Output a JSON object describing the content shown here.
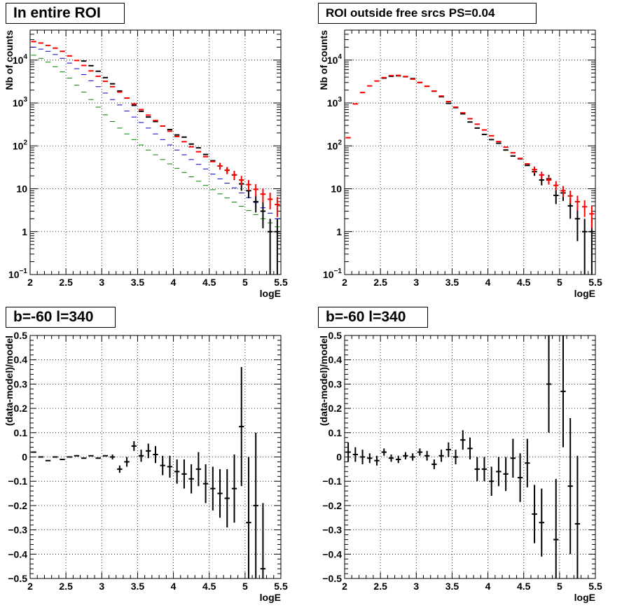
{
  "chart_data": [
    {
      "type": "scatter",
      "title": "In entire ROI",
      "xlabel": "logE",
      "ylabel": "Nb of counts",
      "xlim": [
        2,
        5.5
      ],
      "ylim": [
        0.1,
        50000
      ],
      "yscale": "log",
      "grid": true,
      "x_ticks": [
        "2",
        "2.5",
        "3",
        "3.5",
        "4",
        "4.5",
        "5",
        "5.5"
      ],
      "y_ticks": [
        "10^-1",
        "1",
        "10",
        "10^2",
        "10^3",
        "10^4"
      ],
      "series": [
        {
          "color": "#008000",
          "x": [
            2.05,
            2.15,
            2.25,
            2.35,
            2.45,
            2.55,
            2.65,
            2.75,
            2.85,
            2.95,
            3.05,
            3.15,
            3.25,
            3.35,
            3.45,
            3.55,
            3.65,
            3.75,
            3.85,
            3.95,
            4.05,
            4.15,
            4.25,
            4.35,
            4.45,
            4.55,
            4.65,
            4.75,
            4.85,
            4.95,
            5.05,
            5.15,
            5.25,
            5.35,
            5.45
          ],
          "y": [
            13000,
            11000,
            9000,
            7000,
            5300,
            3800,
            2600,
            1800,
            1200,
            800,
            530,
            370,
            260,
            190,
            140,
            105,
            80,
            62,
            48,
            38,
            30,
            24,
            19,
            15,
            12,
            9.5,
            7.6,
            6.1,
            4.9,
            3.9,
            3.1,
            2.5,
            2.0,
            1.6,
            1.3
          ]
        },
        {
          "color": "#0000cc",
          "x": [
            2.05,
            2.15,
            2.25,
            2.35,
            2.45,
            2.55,
            2.65,
            2.75,
            2.85,
            2.95,
            3.05,
            3.15,
            3.25,
            3.35,
            3.45,
            3.55,
            3.65,
            3.75,
            3.85,
            3.95,
            4.05,
            4.15,
            4.25,
            4.35,
            4.45,
            4.55,
            4.65,
            4.75,
            4.85,
            4.95,
            5.05,
            5.15,
            5.25,
            5.35,
            5.45
          ],
          "y": [
            20000,
            18000,
            16000,
            13500,
            11000,
            8500,
            6300,
            4600,
            3300,
            2400,
            1700,
            1200,
            900,
            650,
            470,
            350,
            260,
            190,
            140,
            105,
            80,
            62,
            48,
            37,
            29,
            22,
            17,
            13.5,
            10.5,
            8,
            6.2,
            4.8,
            3.6,
            2.7,
            2.0
          ]
        },
        {
          "color": "#000000",
          "x": [
            2.75,
            2.85,
            2.95,
            3.05,
            3.15,
            3.25,
            3.35,
            3.45,
            3.55,
            3.65,
            3.75,
            3.85,
            3.95,
            4.05,
            4.15,
            4.25,
            4.35,
            4.45,
            4.55,
            4.65,
            4.75,
            4.85,
            4.95,
            5.05,
            5.15,
            5.25,
            5.35,
            5.45
          ],
          "y": [
            9500,
            7400,
            5500,
            3900,
            2800,
            1900,
            1300,
            880,
            640,
            470,
            370,
            290,
            240,
            180,
            160,
            110,
            90,
            63,
            45,
            34,
            27,
            21,
            13,
            9,
            5,
            3,
            1,
            1
          ],
          "err": [
            0,
            0,
            0,
            0,
            0,
            0,
            0,
            0,
            0,
            0,
            0,
            0,
            0,
            0,
            0,
            0,
            0,
            0,
            0,
            6,
            5,
            5,
            4,
            3,
            2.2,
            1.8,
            1,
            1
          ]
        },
        {
          "color": "#ff0000",
          "x": [
            2.05,
            2.15,
            2.25,
            2.35,
            2.45,
            2.55,
            2.65,
            2.75,
            2.85,
            2.95,
            3.05,
            3.15,
            3.25,
            3.35,
            3.45,
            3.55,
            3.65,
            3.75,
            3.85,
            3.95,
            4.05,
            4.15,
            4.25,
            4.35,
            4.45,
            4.55,
            4.65,
            4.75,
            4.85,
            4.95,
            5.05,
            5.15,
            5.25,
            5.35,
            5.45
          ],
          "y": [
            27000,
            25000,
            22000,
            19000,
            16000,
            12500,
            9800,
            7500,
            5600,
            4200,
            3200,
            2400,
            1800,
            1300,
            950,
            700,
            520,
            390,
            290,
            220,
            165,
            125,
            95,
            73,
            56,
            43,
            34,
            27,
            21,
            16,
            12.5,
            9.7,
            7.5,
            5.7,
            4.3
          ],
          "err": [
            0,
            0,
            0,
            0,
            0,
            0,
            0,
            0,
            0,
            0,
            0,
            0,
            0,
            0,
            0,
            0,
            0,
            0,
            0,
            0,
            0,
            0,
            0,
            0,
            0,
            0,
            6,
            5,
            4.5,
            4,
            3.5,
            3.1,
            2.7,
            2.4,
            2.1
          ]
        }
      ]
    },
    {
      "type": "scatter",
      "title": "ROI outside free srcs PS=0.04",
      "xlabel": "logE",
      "ylabel": "Nb of counts",
      "xlim": [
        2,
        5.5
      ],
      "ylim": [
        0.1,
        50000
      ],
      "yscale": "log",
      "grid": true,
      "x_ticks": [
        "2",
        "2.5",
        "3",
        "3.5",
        "4",
        "4.5",
        "5",
        "5.5"
      ],
      "y_ticks": [
        "10^-1",
        "1",
        "10",
        "10^2",
        "10^3",
        "10^4"
      ],
      "series": [
        {
          "color": "#000000",
          "x": [
            2.55,
            2.65,
            2.75,
            2.85,
            2.95,
            3.05,
            3.15,
            3.25,
            3.35,
            3.45,
            3.55,
            3.65,
            3.75,
            3.85,
            3.95,
            4.05,
            4.15,
            4.25,
            4.35,
            4.45,
            4.55,
            4.65,
            4.75,
            4.85,
            4.95,
            5.05,
            5.15,
            5.25,
            5.35,
            5.45
          ],
          "y": [
            3800,
            4200,
            4300,
            4100,
            3700,
            3000,
            2450,
            1880,
            1400,
            980,
            780,
            560,
            360,
            260,
            185,
            140,
            115,
            80,
            58,
            50,
            35,
            25,
            16,
            17,
            7,
            8,
            4,
            2,
            1,
            1
          ],
          "err": [
            0,
            0,
            0,
            0,
            0,
            0,
            0,
            0,
            0,
            0,
            0,
            0,
            0,
            0,
            0,
            0,
            0,
            0,
            0,
            0,
            0,
            5,
            4,
            4,
            2.6,
            2.8,
            2,
            1.4,
            1,
            1
          ]
        },
        {
          "color": "#ff0000",
          "x": [
            2.05,
            2.15,
            2.25,
            2.35,
            2.45,
            2.55,
            2.65,
            2.75,
            2.85,
            2.95,
            3.05,
            3.15,
            3.25,
            3.35,
            3.45,
            3.55,
            3.65,
            3.75,
            3.85,
            3.95,
            4.05,
            4.15,
            4.25,
            4.35,
            4.45,
            4.55,
            4.65,
            4.75,
            4.85,
            4.95,
            5.05,
            5.15,
            5.25,
            5.35,
            5.45
          ],
          "y": [
            155,
            950,
            1750,
            2500,
            3250,
            3900,
            4350,
            4400,
            4150,
            3600,
            3000,
            2450,
            1900,
            1450,
            1080,
            800,
            590,
            430,
            320,
            235,
            172,
            126,
            93,
            69,
            51,
            38,
            28,
            21,
            16,
            12,
            9,
            6.8,
            5,
            3.8,
            2.6
          ],
          "err": [
            0,
            0,
            0,
            0,
            0,
            0,
            0,
            0,
            0,
            0,
            0,
            0,
            0,
            0,
            0,
            0,
            0,
            0,
            0,
            0,
            0,
            0,
            0,
            0,
            0,
            0,
            5,
            4,
            3.5,
            3,
            2.6,
            2.2,
            1.9,
            1.6,
            1.4
          ]
        }
      ]
    },
    {
      "type": "scatter",
      "title": "b=-60 l=340",
      "xlabel": "logE",
      "ylabel": "(data-model)/model",
      "xlim": [
        2,
        5.5
      ],
      "ylim": [
        -0.5,
        0.5
      ],
      "grid": true,
      "x_ticks": [
        "2",
        "2.5",
        "3",
        "3.5",
        "4",
        "4.5",
        "5",
        "5.5"
      ],
      "y_ticks": [
        "-0.5",
        "-0.4",
        "-0.3",
        "-0.2",
        "-0.1",
        "0",
        "0.1",
        "0.2",
        "0.3",
        "0.4",
        "0.5"
      ],
      "series": [
        {
          "color": "#000000",
          "x": [
            2.05,
            2.15,
            2.25,
            2.35,
            2.45,
            2.55,
            2.65,
            2.75,
            2.85,
            2.95,
            3.05,
            3.15,
            3.25,
            3.35,
            3.45,
            3.55,
            3.65,
            3.75,
            3.85,
            3.95,
            4.05,
            4.15,
            4.25,
            4.35,
            4.45,
            4.55,
            4.65,
            4.75,
            4.85,
            4.95,
            5.05,
            5.15,
            5.25
          ],
          "y": [
            0.02,
            0.0,
            -0.015,
            0.0,
            -0.01,
            0.0,
            0.005,
            -0.005,
            0.005,
            -0.005,
            0.005,
            0.0,
            -0.05,
            -0.02,
            0.045,
            0.005,
            0.025,
            0.01,
            -0.035,
            -0.04,
            -0.06,
            -0.07,
            -0.09,
            -0.05,
            -0.11,
            -0.13,
            -0.15,
            -0.17,
            -0.13,
            0.125,
            -0.27,
            -0.2,
            -0.46
          ],
          "err": [
            0,
            0,
            0,
            0,
            0,
            0,
            0,
            0,
            0,
            0,
            0,
            0.01,
            0.015,
            0.02,
            0.02,
            0.025,
            0.03,
            0.035,
            0.04,
            0.045,
            0.05,
            0.06,
            0.06,
            0.07,
            0.08,
            0.09,
            0.1,
            0.12,
            0.14,
            0.245,
            0.27,
            0.3,
            0.27
          ]
        }
      ]
    },
    {
      "type": "scatter",
      "title": "b=-60 l=340",
      "xlabel": "logE",
      "ylabel": "(data-model)/model",
      "xlim": [
        2,
        5.5
      ],
      "ylim": [
        -0.5,
        0.5
      ],
      "grid": true,
      "x_ticks": [
        "2",
        "2.5",
        "3",
        "3.5",
        "4",
        "4.5",
        "5",
        "5.5"
      ],
      "y_ticks": [
        "-0.5",
        "-0.4",
        "-0.3",
        "-0.2",
        "-0.1",
        "0",
        "0.1",
        "0.2",
        "0.3",
        "0.4",
        "0.5"
      ],
      "series": [
        {
          "color": "#000000",
          "x": [
            2.05,
            2.15,
            2.25,
            2.35,
            2.45,
            2.55,
            2.65,
            2.75,
            2.85,
            2.95,
            3.05,
            3.15,
            3.25,
            3.35,
            3.45,
            3.55,
            3.65,
            3.75,
            3.85,
            3.95,
            4.05,
            4.15,
            4.25,
            4.35,
            4.45,
            4.55,
            4.65,
            4.75,
            4.85,
            4.95,
            5.05,
            5.15,
            5.25
          ],
          "y": [
            0.02,
            0.01,
            0.0,
            -0.005,
            -0.015,
            0.02,
            -0.005,
            -0.01,
            0.005,
            0.0,
            0.02,
            0.005,
            -0.03,
            0.005,
            0.03,
            0.0,
            0.07,
            0.035,
            -0.05,
            -0.05,
            -0.1,
            -0.06,
            -0.07,
            -0.005,
            -0.085,
            -0.025,
            -0.235,
            -0.27,
            0.3,
            -0.34,
            0.27,
            -0.12,
            -0.275
          ],
          "err": [
            0.04,
            0.03,
            0.03,
            0.02,
            0.02,
            0.015,
            0.015,
            0.015,
            0.015,
            0.015,
            0.015,
            0.02,
            0.02,
            0.025,
            0.03,
            0.03,
            0.04,
            0.045,
            0.05,
            0.05,
            0.06,
            0.06,
            0.07,
            0.08,
            0.1,
            0.1,
            0.12,
            0.14,
            0.2,
            0.25,
            0.23,
            0.28,
            0.28
          ]
        }
      ]
    }
  ]
}
